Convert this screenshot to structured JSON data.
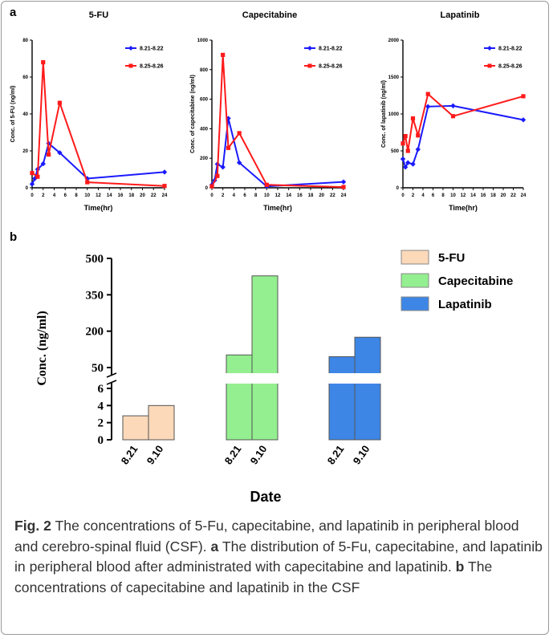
{
  "panel_a_label": "a",
  "panel_b_label": "b",
  "caption": {
    "fig_label": "Fig. 2",
    "intro": "The concentrations of 5-Fu, capecitabine, and lapatinib in peripheral blood and cerebro-spinal fluid (CSF).",
    "a_label": "a",
    "a_text": "The distribution of 5-Fu, capecitabine, and lapatinib in peripheral blood after administrated with capecitabine and lapatinib.",
    "b_label": "b",
    "b_text": "The concentrations of capecitabine and lapatinib in the CSF"
  },
  "colors": {
    "series_8_21": "#1a1aff",
    "series_8_25": "#ff1a1a",
    "bar_5fu": "#fbd9b9",
    "bar_capecitabine": "#93ef8f",
    "bar_lapatinib": "#3d86e6"
  },
  "chart_data": [
    {
      "type": "line",
      "title": "5-FU",
      "xlabel": "Time(hr)",
      "ylabel": "Conc. of 5-FU (ng/ml)",
      "xlim": [
        0,
        24
      ],
      "ylim": [
        0,
        80
      ],
      "x_ticks": [
        "0",
        "2",
        "4",
        "6",
        "8",
        "10",
        "12",
        "14",
        "16",
        "18",
        "20",
        "22",
        "24"
      ],
      "y_ticks": [
        "0",
        "20",
        "40",
        "60",
        "80"
      ],
      "legend_position": "top-right",
      "series": [
        {
          "name": "8.21-8.22",
          "color": "#1a1aff",
          "x": [
            0,
            0.5,
            1,
            2,
            3,
            5,
            10,
            24
          ],
          "y": [
            2,
            5,
            10,
            13,
            24,
            19,
            5,
            8.5
          ]
        },
        {
          "name": "8.25-8.26",
          "color": "#ff1a1a",
          "x": [
            0,
            1,
            2,
            3,
            5,
            10,
            24
          ],
          "y": [
            8,
            6,
            68,
            18,
            46,
            3,
            1
          ]
        }
      ]
    },
    {
      "type": "line",
      "title": "Capecitabine",
      "xlabel": "Time(hr)",
      "ylabel": "Conc. of capecitabine (ng/ml)",
      "xlim": [
        0,
        24
      ],
      "ylim": [
        0,
        1000
      ],
      "x_ticks": [
        "0",
        "2",
        "4",
        "6",
        "8",
        "10",
        "12",
        "14",
        "16",
        "18",
        "20",
        "22",
        "24"
      ],
      "y_ticks": [
        "0",
        "200",
        "400",
        "600",
        "800",
        "1000"
      ],
      "legend_position": "top-right",
      "series": [
        {
          "name": "8.21-8.22",
          "color": "#1a1aff",
          "x": [
            0,
            0.5,
            1,
            2,
            3,
            5,
            10,
            24
          ],
          "y": [
            20,
            50,
            160,
            140,
            470,
            170,
            10,
            40
          ]
        },
        {
          "name": "8.25-8.26",
          "color": "#ff1a1a",
          "x": [
            0,
            1,
            2,
            3,
            5,
            10,
            24
          ],
          "y": [
            10,
            80,
            900,
            270,
            370,
            20,
            5
          ]
        }
      ]
    },
    {
      "type": "line",
      "title": "Lapatinib",
      "xlabel": "Time(hr)",
      "ylabel": "Conc. of lapatinib (ng/ml)",
      "xlim": [
        0,
        24
      ],
      "ylim": [
        0,
        2000
      ],
      "x_ticks": [
        "0",
        "2",
        "4",
        "6",
        "8",
        "10",
        "12",
        "14",
        "16",
        "18",
        "20",
        "22",
        "24"
      ],
      "y_ticks": [
        "0",
        "500",
        "1000",
        "1500",
        "2000"
      ],
      "legend_position": "top-right",
      "series": [
        {
          "name": "8.21-8.22",
          "color": "#1a1aff",
          "x": [
            0,
            0.5,
            1,
            2,
            3,
            5,
            10,
            24
          ],
          "y": [
            390,
            280,
            340,
            320,
            520,
            1100,
            1110,
            920
          ]
        },
        {
          "name": "8.25-8.26",
          "color": "#ff1a1a",
          "x": [
            0,
            0.5,
            1,
            2,
            3,
            5,
            10,
            24
          ],
          "y": [
            600,
            700,
            500,
            940,
            710,
            1270,
            970,
            1240
          ]
        }
      ]
    },
    {
      "type": "bar",
      "xlabel": "Date",
      "ylabel": "Conc. (ng/ml)",
      "axis_break": true,
      "lower_ylim": [
        0,
        6
      ],
      "upper_ylim": [
        50,
        500
      ],
      "lower_ticks": [
        "0",
        "2",
        "4",
        "6"
      ],
      "upper_ticks": [
        "50",
        "200",
        "350",
        "500"
      ],
      "legend_position": "top-right",
      "categories": [
        "8.21",
        "9.10"
      ],
      "series": [
        {
          "name": "5-FU",
          "color": "#fbd9b9",
          "values": [
            2.8,
            4.0
          ]
        },
        {
          "name": "Capecitabine",
          "color": "#93ef8f",
          "values": [
            102,
            428
          ]
        },
        {
          "name": "Lapatinib",
          "color": "#3d86e6",
          "values": [
            95,
            175
          ]
        }
      ]
    }
  ]
}
